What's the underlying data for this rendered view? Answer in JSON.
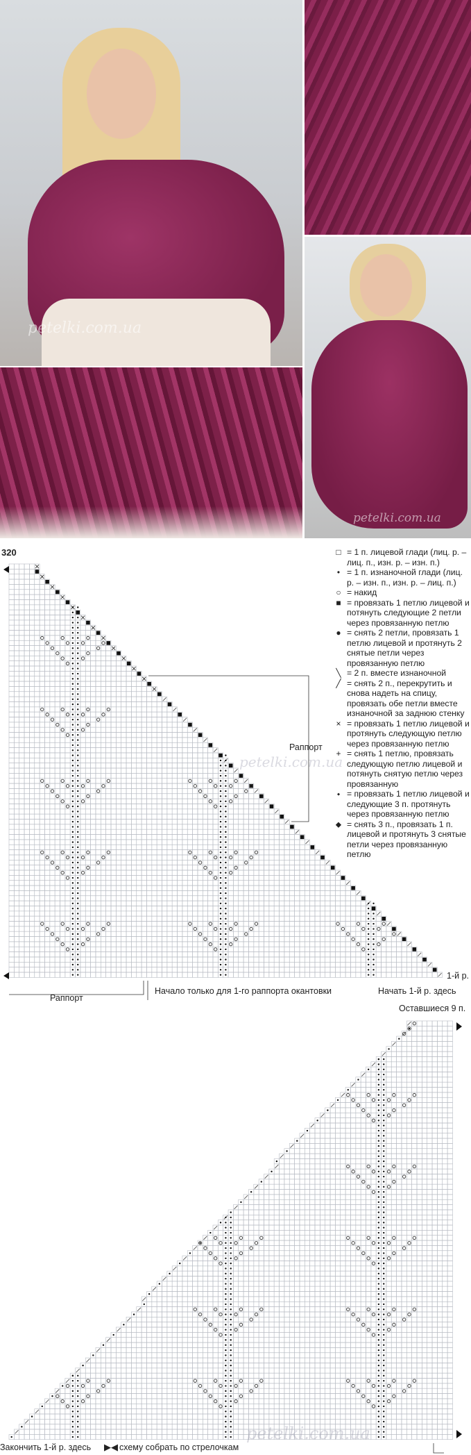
{
  "watermark": "petelki.com.ua",
  "chart_number": "320",
  "legend": [
    {
      "symbol": "empty-square-icon",
      "glyph": "□",
      "text": "1 п. лицевой глади (лиц. р. – лиц. п., изн. р. – изн. п.)"
    },
    {
      "symbol": "small-dot-icon",
      "glyph": "•",
      "text": "1 п. изнаночной глади (лиц. р. – изн. п., изн. р. – лиц. п.)"
    },
    {
      "symbol": "circle-icon",
      "glyph": "○",
      "text": "накид"
    },
    {
      "symbol": "filled-square-icon",
      "glyph": "■",
      "text": "провязать 1 петлю лицевой и потянуть следующие 2 петли через провязанную петлю"
    },
    {
      "symbol": "large-dot-icon",
      "glyph": "●",
      "text": "снять 2 петли, провязать 1 петлю лицевой и протянуть 2 снятые петли через провязанную петлю"
    },
    {
      "symbol": "backslash-icon",
      "glyph": "╲",
      "text": "2 п. вместе изнаночной"
    },
    {
      "symbol": "slash-icon",
      "glyph": "╱",
      "text": "снять 2 п., перекрутить и снова надеть на спицу, провязать обе петли вместе изнаночной за заднюю стенку"
    },
    {
      "symbol": "cross-icon",
      "glyph": "×",
      "text": "провязать 1 петлю лицевой и протянуть следующую петлю через провязанную петлю"
    },
    {
      "symbol": "plus-icon",
      "glyph": "+",
      "text": "снять 1 петлю, провязать следующую петлю лицевой и потянуть снятую петлю через провязанную"
    },
    {
      "symbol": "small-diamond-icon",
      "glyph": "⬩",
      "text": "провязать 1 петлю лицевой и следующие 3 п. протянуть через провязанную петлю"
    },
    {
      "symbol": "small-diamond-icon-2",
      "glyph": "⬥",
      "text": "снять 3 п., провязать 1 п. лицевой и протянуть 3 снятые петли через провязанную петлю"
    }
  ],
  "chart1": {
    "repeat_label_inside": "Раппорт",
    "row1_label": "1-й р.",
    "repeat_label_bottom": "Раппорт",
    "start_first_repeat_note": "Начало только для 1-го раппорта окантовки",
    "start_row_note": "Начать 1-й р. здесь"
  },
  "chart2": {
    "remaining_label": "Оставшиеся 9 п.",
    "finish_row_note": "Закончить 1-й р. здесь",
    "assemble_note": "схему собрать по стрелочкам"
  },
  "colors": {
    "yarn": "#8a2652",
    "grid": "#b8bcc4",
    "ink": "#222222"
  }
}
